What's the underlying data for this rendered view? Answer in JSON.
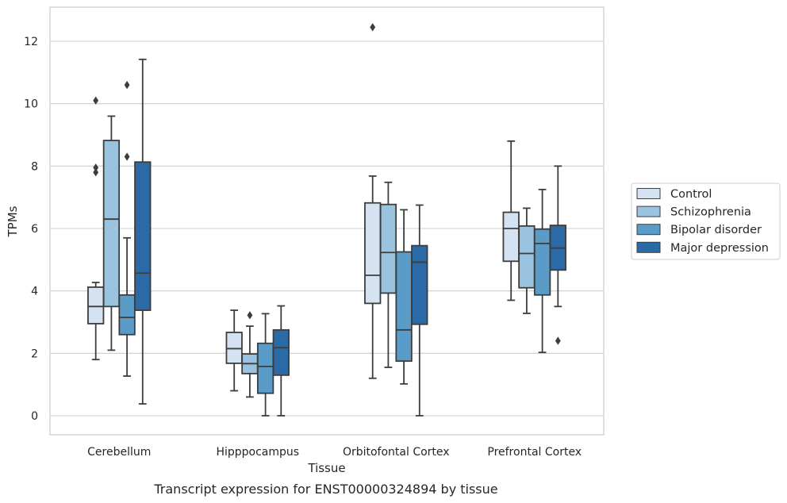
{
  "caption": "Transcript expression for ENST00000324894 by tissue",
  "chart_data": {
    "type": "boxplot",
    "xlabel": "Tissue",
    "ylabel": "TPMs",
    "ylim": [
      -0.6,
      13.1
    ],
    "yticks": [
      0,
      2,
      4,
      6,
      8,
      10,
      12
    ],
    "grid": true,
    "legend_position": "right",
    "categories": [
      "Cerebellum",
      "Hipppocampus",
      "Orbitofontal Cortex",
      "Prefrontal Cortex"
    ],
    "series": [
      {
        "name": "Control",
        "color": "#d4e2f1",
        "boxes": [
          {
            "whislo": 1.8,
            "q1": 2.95,
            "med": 3.5,
            "q3": 4.12,
            "whishi": 4.27,
            "fliers": [
              7.8,
              7.95,
              10.1
            ]
          },
          {
            "whislo": 0.8,
            "q1": 1.68,
            "med": 2.15,
            "q3": 2.67,
            "whishi": 3.38,
            "fliers": []
          },
          {
            "whislo": 1.2,
            "q1": 3.6,
            "med": 4.5,
            "q3": 6.82,
            "whishi": 7.68,
            "fliers": [
              12.45
            ]
          },
          {
            "whislo": 3.7,
            "q1": 4.95,
            "med": 6.0,
            "q3": 6.52,
            "whishi": 8.8,
            "fliers": []
          }
        ]
      },
      {
        "name": "Schizophrenia",
        "color": "#9ac3df",
        "boxes": [
          {
            "whislo": 2.1,
            "q1": 3.5,
            "med": 6.3,
            "q3": 8.82,
            "whishi": 9.6,
            "fliers": []
          },
          {
            "whislo": 0.6,
            "q1": 1.35,
            "med": 1.67,
            "q3": 1.98,
            "whishi": 2.87,
            "fliers": [
              3.22
            ]
          },
          {
            "whislo": 1.55,
            "q1": 3.93,
            "med": 5.23,
            "q3": 6.77,
            "whishi": 7.48,
            "fliers": []
          },
          {
            "whislo": 3.28,
            "q1": 4.1,
            "med": 5.2,
            "q3": 6.08,
            "whishi": 6.65,
            "fliers": []
          }
        ]
      },
      {
        "name": "Bipolar disorder",
        "color": "#5a9bc8",
        "boxes": [
          {
            "whislo": 1.27,
            "q1": 2.6,
            "med": 3.15,
            "q3": 3.87,
            "whishi": 5.7,
            "fliers": [
              8.3,
              10.6
            ]
          },
          {
            "whislo": 0.0,
            "q1": 0.72,
            "med": 1.58,
            "q3": 2.32,
            "whishi": 3.27,
            "fliers": []
          },
          {
            "whislo": 1.02,
            "q1": 1.75,
            "med": 2.75,
            "q3": 5.25,
            "whishi": 6.6,
            "fliers": []
          },
          {
            "whislo": 2.03,
            "q1": 3.87,
            "med": 5.52,
            "q3": 5.98,
            "whishi": 7.25,
            "fliers": []
          }
        ]
      },
      {
        "name": "Major depression",
        "color": "#2a6aa7",
        "boxes": [
          {
            "whislo": 0.38,
            "q1": 3.38,
            "med": 4.57,
            "q3": 8.13,
            "whishi": 11.42,
            "fliers": []
          },
          {
            "whislo": 0.0,
            "q1": 1.3,
            "med": 2.18,
            "q3": 2.75,
            "whishi": 3.52,
            "fliers": []
          },
          {
            "whislo": 0.0,
            "q1": 2.93,
            "med": 4.92,
            "q3": 5.45,
            "whishi": 6.75,
            "fliers": []
          },
          {
            "whislo": 3.5,
            "q1": 4.67,
            "med": 5.37,
            "q3": 6.1,
            "whishi": 8.0,
            "fliers": [
              2.4
            ]
          }
        ]
      }
    ]
  }
}
